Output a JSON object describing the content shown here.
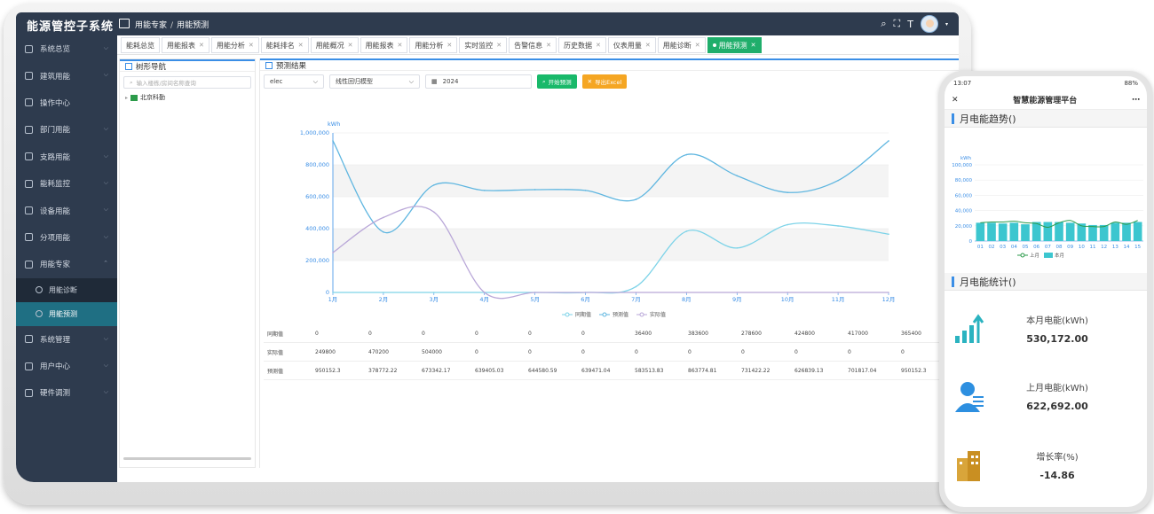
{
  "app": {
    "title": "能源管控子系统",
    "breadcrumb": [
      "用能专家",
      "用能预测"
    ]
  },
  "sidebar": {
    "items": [
      {
        "label": "系统总览",
        "icon": "home-icon"
      },
      {
        "label": "建筑用能",
        "icon": "building-icon"
      },
      {
        "label": "操作中心",
        "icon": "grid-icon"
      },
      {
        "label": "部门用能",
        "icon": "list-icon"
      },
      {
        "label": "支路用能",
        "icon": "branch-icon"
      },
      {
        "label": "能耗监控",
        "icon": "monitor-icon"
      },
      {
        "label": "设备用能",
        "icon": "device-icon"
      },
      {
        "label": "分项用能",
        "icon": "pie-icon"
      },
      {
        "label": "用能专家",
        "icon": "expert-icon"
      }
    ],
    "subitems": [
      {
        "label": "用能诊断",
        "icon": "diagnose-icon"
      },
      {
        "label": "用能预测",
        "icon": "forecast-icon"
      }
    ],
    "bottom_items": [
      {
        "label": "系统管理",
        "icon": "gear-icon"
      },
      {
        "label": "用户中心",
        "icon": "user-icon"
      },
      {
        "label": "硬件调测",
        "icon": "tool-icon"
      }
    ]
  },
  "tabs": [
    {
      "label": "能耗总览"
    },
    {
      "label": "用能报表"
    },
    {
      "label": "用能分析"
    },
    {
      "label": "能耗排名"
    },
    {
      "label": "用能概况"
    },
    {
      "label": "用能报表"
    },
    {
      "label": "用能分析"
    },
    {
      "label": "实时监控"
    },
    {
      "label": "告警信息"
    },
    {
      "label": "历史数据"
    },
    {
      "label": "仪表用量"
    },
    {
      "label": "用能诊断"
    },
    {
      "label": "用能预测"
    }
  ],
  "tree": {
    "title": "树形导航",
    "search_placeholder": "输入楼栋/房间名称查询",
    "root": "北京科勤"
  },
  "forecast": {
    "title": "预测结果",
    "energy_select": "elec",
    "model_select": "线性回归模型",
    "year": "2024",
    "btn_start": "开始预测",
    "btn_export": "导出Excel"
  },
  "chart_data": {
    "type": "line",
    "ylabel": "kWh",
    "ylim": [
      0,
      1000000
    ],
    "yticks": [
      "0",
      "200,000",
      "400,000",
      "600,000",
      "800,000",
      "1,000,000"
    ],
    "categories": [
      "1月",
      "2月",
      "3月",
      "4月",
      "5月",
      "6月",
      "7月",
      "8月",
      "9月",
      "10月",
      "11月",
      "12月"
    ],
    "series": [
      {
        "name": "同期值",
        "color": "#7dd3e8",
        "values": [
          0,
          0,
          0,
          0,
          0,
          0,
          36400,
          383600,
          278600,
          424800,
          417000,
          365400
        ]
      },
      {
        "name": "预测值",
        "color": "#5fb6e0",
        "values": [
          950152.3,
          378772.22,
          673342.17,
          639405.03,
          644580.59,
          639471.04,
          583513.83,
          863774.81,
          731422.22,
          626839.13,
          701817.04,
          950152.3
        ]
      },
      {
        "name": "实际值",
        "color": "#b9a7d8",
        "values": [
          249800,
          470200,
          504000,
          0,
          0,
          0,
          0,
          0,
          0,
          0,
          0,
          0
        ]
      }
    ],
    "legend": "bottom"
  },
  "table": {
    "rows": [
      {
        "label": "同期值",
        "values": [
          "0",
          "0",
          "0",
          "0",
          "0",
          "0",
          "36400",
          "383600",
          "278600",
          "424800",
          "417000",
          "365400"
        ]
      },
      {
        "label": "实际值",
        "values": [
          "249800",
          "470200",
          "504000",
          "0",
          "0",
          "0",
          "0",
          "0",
          "0",
          "0",
          "0",
          "0"
        ]
      },
      {
        "label": "预测值",
        "values": [
          "950152.3",
          "378772.22",
          "673342.17",
          "639405.03",
          "644580.59",
          "639471.04",
          "583513.83",
          "863774.81",
          "731422.22",
          "626839.13",
          "701817.04",
          "950152.3"
        ]
      }
    ]
  },
  "phone": {
    "time": "13:07",
    "battery": "88%",
    "title": "智慧能源管理平台",
    "section1": "月电能趋势()",
    "section2": "月电能统计()",
    "mini_chart": {
      "type": "bar",
      "ylabel": "kWh",
      "ylim": [
        0,
        100000
      ],
      "yticks": [
        "0",
        "20,000",
        "40,000",
        "60,000",
        "80,000",
        "100,000"
      ],
      "categories": [
        "01",
        "02",
        "03",
        "04",
        "05",
        "06",
        "07",
        "08",
        "09",
        "10",
        "11",
        "12",
        "13",
        "14",
        "15"
      ],
      "bar_values": [
        24000,
        24000,
        23000,
        24000,
        22000,
        25000,
        25000,
        25000,
        24000,
        23000,
        21000,
        21000,
        24000,
        24000,
        25000
      ],
      "line_values": [
        24000,
        25000,
        25000,
        26000,
        24000,
        23000,
        18000,
        24000,
        27000,
        20000,
        19000,
        19000,
        25000,
        22000,
        27000
      ],
      "legend": [
        "上月",
        "本月"
      ]
    },
    "stats": [
      {
        "label": "本月电能(kWh)",
        "value": "530,172.00",
        "icon": "bar-growth-icon"
      },
      {
        "label": "上月电能(kWh)",
        "value": "622,692.00",
        "icon": "person-icon"
      },
      {
        "label": "增长率(%)",
        "value": "-14.86",
        "icon": "building-icon"
      }
    ]
  }
}
